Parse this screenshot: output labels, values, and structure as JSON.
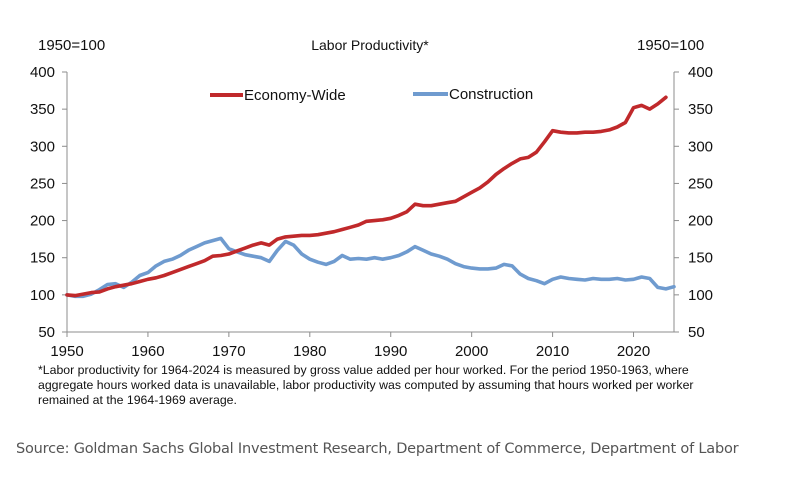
{
  "chart_data": {
    "type": "line",
    "title": "Labor Productivity*",
    "ylabel_left": "1950=100",
    "ylabel_right": "1950=100",
    "xlabel": "",
    "ylim": [
      50,
      400
    ],
    "xlim": [
      1950,
      2025
    ],
    "yticks": [
      50,
      100,
      150,
      200,
      250,
      300,
      350,
      400
    ],
    "xticks": [
      1950,
      1960,
      1970,
      1980,
      1990,
      2000,
      2010,
      2020
    ],
    "grid": false,
    "legend_position": "top",
    "series": [
      {
        "name": "Economy-Wide",
        "color": "#c0292b",
        "points": [
          [
            1950,
            100
          ],
          [
            1951,
            99
          ],
          [
            1952,
            101
          ],
          [
            1953,
            103
          ],
          [
            1954,
            104
          ],
          [
            1955,
            108
          ],
          [
            1956,
            111
          ],
          [
            1957,
            113
          ],
          [
            1958,
            115
          ],
          [
            1959,
            118
          ],
          [
            1960,
            121
          ],
          [
            1961,
            123
          ],
          [
            1962,
            126
          ],
          [
            1963,
            130
          ],
          [
            1964,
            134
          ],
          [
            1965,
            138
          ],
          [
            1966,
            142
          ],
          [
            1967,
            146
          ],
          [
            1968,
            152
          ],
          [
            1969,
            153
          ],
          [
            1970,
            155
          ],
          [
            1971,
            159
          ],
          [
            1972,
            163
          ],
          [
            1973,
            167
          ],
          [
            1974,
            170
          ],
          [
            1975,
            167
          ],
          [
            1976,
            175
          ],
          [
            1977,
            178
          ],
          [
            1978,
            179
          ],
          [
            1979,
            180
          ],
          [
            1980,
            180
          ],
          [
            1981,
            181
          ],
          [
            1982,
            183
          ],
          [
            1983,
            185
          ],
          [
            1984,
            188
          ],
          [
            1985,
            191
          ],
          [
            1986,
            194
          ],
          [
            1987,
            199
          ],
          [
            1988,
            200
          ],
          [
            1989,
            201
          ],
          [
            1990,
            203
          ],
          [
            1991,
            207
          ],
          [
            1992,
            212
          ],
          [
            1993,
            222
          ],
          [
            1994,
            220
          ],
          [
            1995,
            220
          ],
          [
            1996,
            222
          ],
          [
            1997,
            224
          ],
          [
            1998,
            226
          ],
          [
            1999,
            232
          ],
          [
            2000,
            238
          ],
          [
            2001,
            244
          ],
          [
            2002,
            252
          ],
          [
            2003,
            262
          ],
          [
            2004,
            270
          ],
          [
            2005,
            277
          ],
          [
            2006,
            283
          ],
          [
            2007,
            285
          ],
          [
            2008,
            292
          ],
          [
            2009,
            306
          ],
          [
            2010,
            321
          ],
          [
            2011,
            319
          ],
          [
            2012,
            318
          ],
          [
            2013,
            318
          ],
          [
            2014,
            319
          ],
          [
            2015,
            319
          ],
          [
            2016,
            320
          ],
          [
            2017,
            322
          ],
          [
            2018,
            326
          ],
          [
            2019,
            332
          ],
          [
            2020,
            352
          ],
          [
            2021,
            355
          ],
          [
            2022,
            350
          ],
          [
            2023,
            357
          ],
          [
            2024,
            366
          ]
        ]
      },
      {
        "name": "Construction",
        "color": "#6f9bcf",
        "points": [
          [
            1950,
            100
          ],
          [
            1951,
            98
          ],
          [
            1952,
            98
          ],
          [
            1953,
            101
          ],
          [
            1954,
            107
          ],
          [
            1955,
            114
          ],
          [
            1956,
            115
          ],
          [
            1957,
            110
          ],
          [
            1958,
            117
          ],
          [
            1959,
            126
          ],
          [
            1960,
            130
          ],
          [
            1961,
            139
          ],
          [
            1962,
            145
          ],
          [
            1963,
            148
          ],
          [
            1964,
            153
          ],
          [
            1965,
            160
          ],
          [
            1966,
            165
          ],
          [
            1967,
            170
          ],
          [
            1968,
            173
          ],
          [
            1969,
            176
          ],
          [
            1970,
            162
          ],
          [
            1971,
            158
          ],
          [
            1972,
            154
          ],
          [
            1973,
            152
          ],
          [
            1974,
            150
          ],
          [
            1975,
            145
          ],
          [
            1976,
            160
          ],
          [
            1977,
            172
          ],
          [
            1978,
            167
          ],
          [
            1979,
            155
          ],
          [
            1980,
            148
          ],
          [
            1981,
            144
          ],
          [
            1982,
            141
          ],
          [
            1983,
            145
          ],
          [
            1984,
            153
          ],
          [
            1985,
            148
          ],
          [
            1986,
            149
          ],
          [
            1987,
            148
          ],
          [
            1988,
            150
          ],
          [
            1989,
            148
          ],
          [
            1990,
            150
          ],
          [
            1991,
            153
          ],
          [
            1992,
            158
          ],
          [
            1993,
            165
          ],
          [
            1994,
            160
          ],
          [
            1995,
            155
          ],
          [
            1996,
            152
          ],
          [
            1997,
            148
          ],
          [
            1998,
            142
          ],
          [
            1999,
            138
          ],
          [
            2000,
            136
          ],
          [
            2001,
            135
          ],
          [
            2002,
            135
          ],
          [
            2003,
            136
          ],
          [
            2004,
            141
          ],
          [
            2005,
            139
          ],
          [
            2006,
            128
          ],
          [
            2007,
            122
          ],
          [
            2008,
            119
          ],
          [
            2009,
            115
          ],
          [
            2010,
            121
          ],
          [
            2011,
            124
          ],
          [
            2012,
            122
          ],
          [
            2013,
            121
          ],
          [
            2014,
            120
          ],
          [
            2015,
            122
          ],
          [
            2016,
            121
          ],
          [
            2017,
            121
          ],
          [
            2018,
            122
          ],
          [
            2019,
            120
          ],
          [
            2020,
            121
          ],
          [
            2021,
            124
          ],
          [
            2022,
            122
          ],
          [
            2023,
            110
          ],
          [
            2024,
            108
          ],
          [
            2025,
            111
          ]
        ]
      }
    ],
    "footnote": "*Labor productivity for 1964-2024 is measured by gross value added per hour worked. For the period 1950-1963, where aggregate hours worked data is unavailable, labor productivity was computed by assuming that hours worked per worker remained at the 1964-1969 average."
  },
  "source": "Source: Goldman Sachs Global Investment Research, Department of Commerce, Department of Labor"
}
